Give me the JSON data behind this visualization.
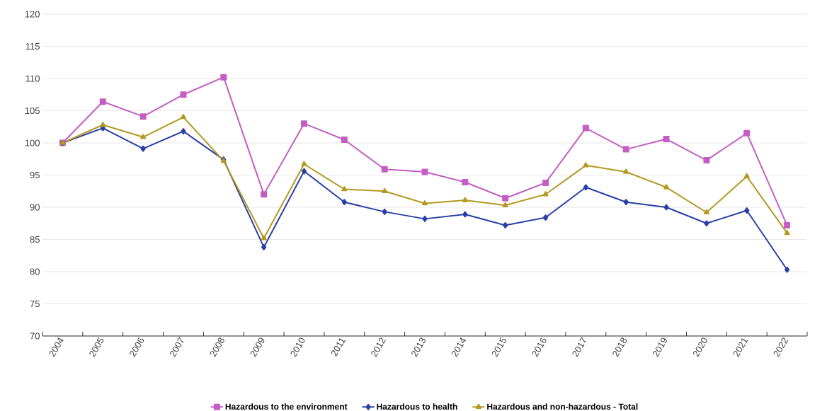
{
  "chart_data": {
    "type": "line",
    "categories": [
      "2004",
      "2005",
      "2006",
      "2007",
      "2008",
      "2009",
      "2010",
      "2011",
      "2012",
      "2013",
      "2014",
      "2015",
      "2016",
      "2017",
      "2018",
      "2019",
      "2020",
      "2021",
      "2022"
    ],
    "series": [
      {
        "name": "Hazardous to the environment",
        "color": "#c45ec4",
        "marker": "square",
        "values": [
          100,
          106.4,
          104.1,
          107.5,
          110.2,
          92.0,
          103.0,
          100.5,
          95.9,
          95.5,
          93.9,
          91.4,
          93.8,
          102.3,
          99.0,
          100.6,
          97.3,
          101.5,
          87.2
        ]
      },
      {
        "name": "Hazardous to health",
        "color": "#2a3fa8",
        "marker": "diamond",
        "values": [
          100,
          102.3,
          99.1,
          101.8,
          97.4,
          83.8,
          95.6,
          90.8,
          89.3,
          88.2,
          88.9,
          87.2,
          88.4,
          93.1,
          90.8,
          90.0,
          87.5,
          89.5,
          80.3
        ]
      },
      {
        "name": "Hazardous and non-hazardous - Total",
        "color": "#b39a22",
        "marker": "triangle",
        "values": [
          100,
          102.8,
          100.9,
          104.0,
          97.2,
          85.2,
          96.7,
          92.8,
          92.5,
          90.6,
          91.1,
          90.3,
          92.0,
          96.5,
          95.5,
          93.1,
          89.2,
          94.8,
          86.0
        ]
      }
    ],
    "ylim": [
      70,
      120
    ],
    "yticks": [
      70,
      75,
      80,
      85,
      90,
      95,
      100,
      105,
      110,
      115,
      120
    ],
    "grid": "y",
    "legend": "bottom",
    "line_style": "solid"
  }
}
